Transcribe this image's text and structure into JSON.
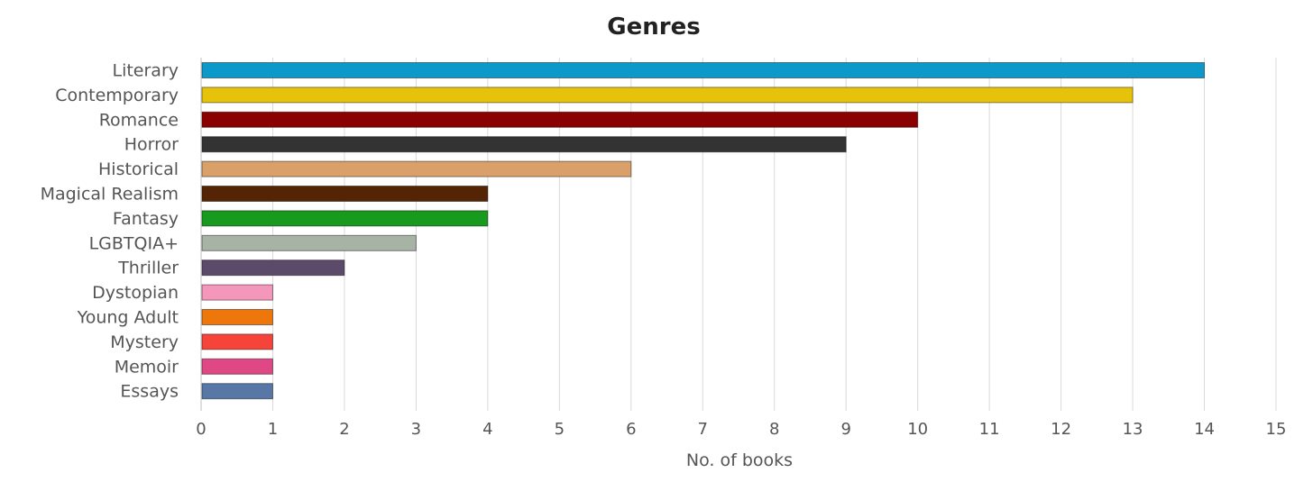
{
  "chart_data": {
    "type": "bar",
    "orientation": "horizontal",
    "title": "Genres",
    "xlabel": "No. of books",
    "ylabel": "",
    "xlim": [
      0,
      15
    ],
    "x_ticks": [
      "0",
      "1",
      "2",
      "3",
      "4",
      "5",
      "6",
      "7",
      "8",
      "9",
      "10",
      "11",
      "12",
      "13",
      "14",
      "15"
    ],
    "grid": true,
    "categories": [
      "Literary",
      "Contemporary",
      "Romance",
      "Horror",
      "Historical",
      "Magical Realism",
      "Fantasy",
      "LGBTQIA+",
      "Thriller",
      "Dystopian",
      "Young Adult",
      "Mystery",
      "Memoir",
      "Essays"
    ],
    "values": [
      14,
      13,
      10,
      9,
      6,
      4,
      4,
      3,
      2,
      1,
      1,
      1,
      1,
      1
    ],
    "colors": [
      "#0a99c8",
      "#e6c20a",
      "#8b0000",
      "#333333",
      "#d9a06a",
      "#542404",
      "#179a1e",
      "#a7b3a5",
      "#5c4a6a",
      "#f497bb",
      "#ee770c",
      "#f6443a",
      "#df4884",
      "#5778a7"
    ]
  }
}
